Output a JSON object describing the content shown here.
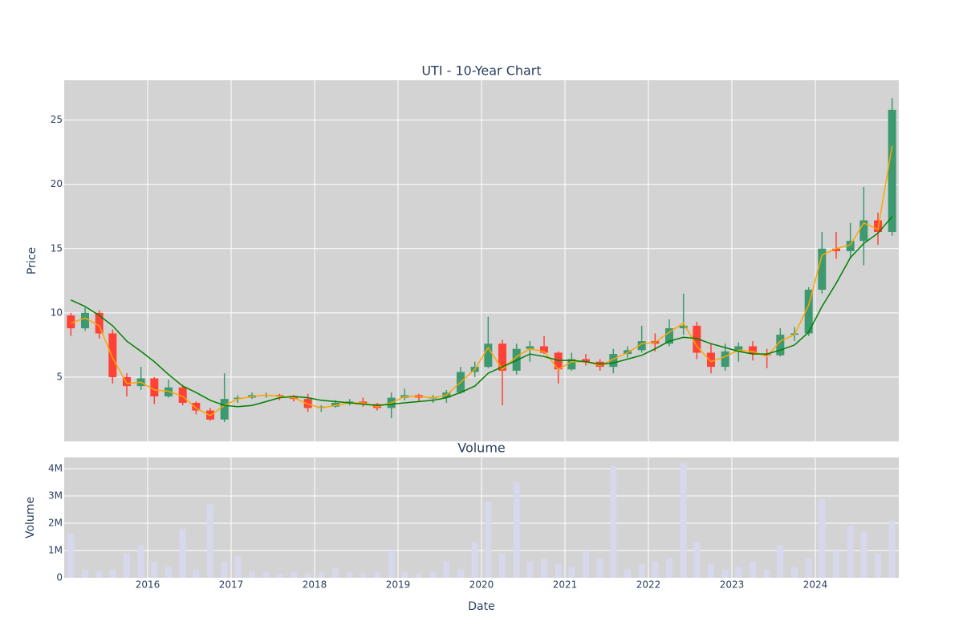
{
  "chart_data": [
    {
      "type": "candlestick",
      "title": "UTI - 10-Year Chart",
      "y_label": "Price",
      "x": [
        2015.08,
        2015.25,
        2015.42,
        2015.58,
        2015.75,
        2015.92,
        2016.08,
        2016.25,
        2016.42,
        2016.58,
        2016.75,
        2016.92,
        2017.08,
        2017.25,
        2017.42,
        2017.58,
        2017.75,
        2017.92,
        2018.08,
        2018.25,
        2018.42,
        2018.58,
        2018.75,
        2018.92,
        2019.08,
        2019.25,
        2019.42,
        2019.58,
        2019.75,
        2019.92,
        2020.08,
        2020.25,
        2020.42,
        2020.58,
        2020.75,
        2020.92,
        2021.08,
        2021.25,
        2021.42,
        2021.58,
        2021.75,
        2021.92,
        2022.08,
        2022.25,
        2022.42,
        2022.58,
        2022.75,
        2022.92,
        2023.08,
        2023.25,
        2023.42,
        2023.58,
        2023.75,
        2023.92,
        2024.08,
        2024.25,
        2024.42,
        2024.58,
        2024.75,
        2024.92
      ],
      "open": [
        9.8,
        8.8,
        10.0,
        8.4,
        5.0,
        4.3,
        4.9,
        3.5,
        4.2,
        3.0,
        2.4,
        1.7,
        3.3,
        3.4,
        3.6,
        3.6,
        3.5,
        3.3,
        2.6,
        2.7,
        3.0,
        3.1,
        2.9,
        2.6,
        3.4,
        3.6,
        3.4,
        3.4,
        3.8,
        5.4,
        5.8,
        7.6,
        5.5,
        7.2,
        7.4,
        6.9,
        5.6,
        6.4,
        6.2,
        5.8,
        6.8,
        7.1,
        7.8,
        7.6,
        8.8,
        9.0,
        6.9,
        5.8,
        7.0,
        7.4,
        6.8,
        6.7,
        8.3,
        8.4,
        11.8,
        15.0,
        14.8,
        15.6,
        17.2,
        16.3
      ],
      "high": [
        10.0,
        10.4,
        10.2,
        8.7,
        5.3,
        5.8,
        5.0,
        4.8,
        4.4,
        3.1,
        2.6,
        5.3,
        3.6,
        3.8,
        3.8,
        3.7,
        3.6,
        3.7,
        2.8,
        3.2,
        3.3,
        3.4,
        3.0,
        3.8,
        4.1,
        3.7,
        3.6,
        4.0,
        5.8,
        6.2,
        9.7,
        7.9,
        7.6,
        7.8,
        8.2,
        7.0,
        6.9,
        6.8,
        6.4,
        7.2,
        7.4,
        9.0,
        8.4,
        9.5,
        11.5,
        9.3,
        7.6,
        7.6,
        7.7,
        7.8,
        7.2,
        8.8,
        8.9,
        12.0,
        16.3,
        16.3,
        17.0,
        19.8,
        17.8,
        26.7
      ],
      "low": [
        8.2,
        8.6,
        8.0,
        4.5,
        3.5,
        4.0,
        2.9,
        3.4,
        2.8,
        2.1,
        1.6,
        1.5,
        3.0,
        3.3,
        3.4,
        3.2,
        3.1,
        2.3,
        2.3,
        2.6,
        2.8,
        2.7,
        2.4,
        1.8,
        3.2,
        3.1,
        3.0,
        3.0,
        3.7,
        5.0,
        5.7,
        2.8,
        5.2,
        6.2,
        6.8,
        4.5,
        5.5,
        5.9,
        5.5,
        5.3,
        6.5,
        6.9,
        7.0,
        7.4,
        8.3,
        6.4,
        5.3,
        5.5,
        6.2,
        6.3,
        5.7,
        6.6,
        7.8,
        8.2,
        11.5,
        14.2,
        14.2,
        13.7,
        15.3,
        16.0
      ],
      "close": [
        8.8,
        10.0,
        8.4,
        5.0,
        4.3,
        4.9,
        3.5,
        4.2,
        3.0,
        2.4,
        1.7,
        3.3,
        3.4,
        3.6,
        3.6,
        3.5,
        3.3,
        2.6,
        2.7,
        3.0,
        3.1,
        2.9,
        2.6,
        3.4,
        3.6,
        3.4,
        3.4,
        3.8,
        5.4,
        5.8,
        7.6,
        5.5,
        7.2,
        7.4,
        6.9,
        5.6,
        6.4,
        6.2,
        5.8,
        6.8,
        7.1,
        7.8,
        7.6,
        8.8,
        9.0,
        6.9,
        5.8,
        7.0,
        7.4,
        6.8,
        6.7,
        8.3,
        8.4,
        11.8,
        15.0,
        14.8,
        15.6,
        17.2,
        16.3,
        25.8
      ],
      "increasing_color": "#3d9970",
      "decreasing_color": "#ff4136",
      "ma_short": {
        "color": "#ffa500",
        "values": [
          9.2,
          9.6,
          9.0,
          6.5,
          4.5,
          4.6,
          4.0,
          3.9,
          3.5,
          2.6,
          2.0,
          2.8,
          3.3,
          3.5,
          3.6,
          3.5,
          3.4,
          2.9,
          2.6,
          2.8,
          3.0,
          3.0,
          2.7,
          3.0,
          3.5,
          3.5,
          3.4,
          3.6,
          4.6,
          5.6,
          7.3,
          5.6,
          6.6,
          7.2,
          7.0,
          5.6,
          6.2,
          6.2,
          5.9,
          6.4,
          6.9,
          7.6,
          7.7,
          8.5,
          9.2,
          7.4,
          6.2,
          6.6,
          7.1,
          7.0,
          6.6,
          7.8,
          8.3,
          10.6,
          14.5,
          15.0,
          15.3,
          17.0,
          16.5,
          23.0
        ]
      },
      "ma_long": {
        "color": "#008000",
        "values": [
          11.0,
          10.5,
          9.8,
          9.0,
          7.8,
          7.0,
          6.2,
          5.2,
          4.3,
          3.8,
          3.2,
          2.8,
          2.7,
          2.8,
          3.1,
          3.4,
          3.5,
          3.4,
          3.2,
          3.1,
          3.0,
          2.9,
          2.8,
          2.9,
          3.0,
          3.1,
          3.2,
          3.4,
          3.8,
          4.3,
          5.3,
          5.8,
          6.3,
          6.8,
          6.6,
          6.3,
          6.3,
          6.2,
          6.0,
          6.1,
          6.4,
          6.7,
          7.2,
          7.8,
          8.1,
          8.0,
          7.6,
          7.3,
          7.0,
          6.8,
          6.8,
          7.1,
          7.5,
          8.5,
          10.5,
          12.3,
          14.3,
          15.4,
          16.2,
          17.5
        ]
      },
      "xlim": [
        2015,
        2025
      ],
      "ylim": [
        0,
        28.1
      ],
      "yticks": [
        5,
        10,
        15,
        20,
        25
      ],
      "grid": true
    },
    {
      "type": "bar",
      "title": "Volume",
      "y_label": "Volume",
      "x_label": "Date",
      "color": "#d8d8f0",
      "values": [
        1600000,
        300000,
        250000,
        300000,
        900000,
        1200000,
        600000,
        400000,
        1800000,
        300000,
        2700000,
        600000,
        800000,
        250000,
        200000,
        150000,
        200000,
        150000,
        200000,
        350000,
        200000,
        150000,
        200000,
        1000000,
        200000,
        150000,
        200000,
        600000,
        300000,
        1300000,
        2800000,
        900000,
        3500000,
        600000,
        700000,
        500000,
        400000,
        1000000,
        700000,
        4100000,
        300000,
        500000,
        600000,
        700000,
        4200000,
        1300000,
        500000,
        300000,
        400000,
        600000,
        300000,
        1200000,
        400000,
        700000,
        2900000,
        1000000,
        1900000,
        1700000,
        900000,
        2100000
      ],
      "xlim": [
        2015,
        2025
      ],
      "xticks": [
        2016,
        2017,
        2018,
        2019,
        2020,
        2021,
        2022,
        2023,
        2024
      ],
      "ylim": [
        0,
        4410000
      ],
      "yticks": [
        0,
        {
          "value": 1000000,
          "label": "1M"
        },
        {
          "value": 2000000,
          "label": "2M"
        },
        {
          "value": 3000000,
          "label": "3M"
        },
        {
          "value": 4000000,
          "label": "4M"
        }
      ],
      "grid": true
    }
  ]
}
